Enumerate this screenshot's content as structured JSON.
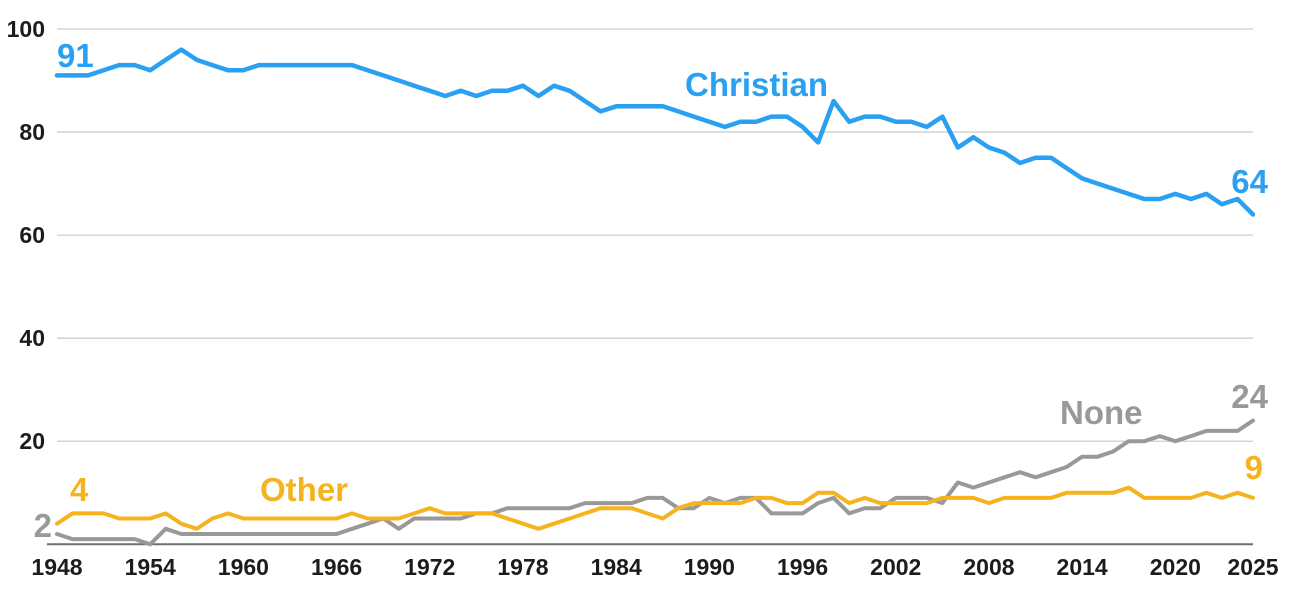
{
  "chart_data": {
    "type": "line",
    "title": "",
    "xlabel": "",
    "ylabel": "",
    "x_range": [
      1948,
      2025
    ],
    "x_step": 1,
    "ylim": [
      0,
      100
    ],
    "grid": true,
    "legend_position": "inline-labels",
    "x_ticks": [
      1948,
      1954,
      1960,
      1966,
      1972,
      1978,
      1984,
      1990,
      1996,
      2002,
      2008,
      2014,
      2020,
      2025
    ],
    "y_ticks": [
      20,
      40,
      60,
      80,
      100
    ],
    "series": [
      {
        "name": "Christian",
        "color": "#2AA0F2",
        "start_value_label": "91",
        "end_value_label": "64",
        "values": [
          91,
          91,
          91,
          92,
          93,
          93,
          92,
          94,
          96,
          94,
          93,
          92,
          92,
          93,
          93,
          93,
          93,
          93,
          93,
          93,
          92,
          91,
          90,
          89,
          88,
          87,
          88,
          87,
          88,
          88,
          89,
          87,
          89,
          88,
          86,
          84,
          85,
          85,
          85,
          85,
          84,
          83,
          82,
          81,
          82,
          82,
          83,
          83,
          81,
          78,
          86,
          82,
          83,
          83,
          82,
          82,
          81,
          83,
          77,
          79,
          77,
          76,
          74,
          75,
          75,
          73,
          71,
          70,
          69,
          68,
          67,
          67,
          68,
          67,
          68,
          66,
          67,
          64
        ]
      },
      {
        "name": "None",
        "color": "#999999",
        "start_value_label": "2",
        "end_value_label": "24",
        "values": [
          2,
          1,
          1,
          1,
          1,
          1,
          0,
          3,
          2,
          2,
          2,
          2,
          2,
          2,
          2,
          2,
          2,
          2,
          2,
          3,
          4,
          5,
          3,
          5,
          5,
          5,
          5,
          6,
          6,
          7,
          7,
          7,
          7,
          7,
          8,
          8,
          8,
          8,
          9,
          9,
          7,
          7,
          9,
          8,
          9,
          9,
          6,
          6,
          6,
          8,
          9,
          6,
          7,
          7,
          9,
          9,
          9,
          8,
          12,
          11,
          12,
          13,
          14,
          13,
          14,
          15,
          17,
          17,
          18,
          20,
          20,
          21,
          20,
          21,
          22,
          22,
          22,
          24
        ]
      },
      {
        "name": "Other",
        "color": "#F5B41F",
        "start_value_label": "4",
        "end_value_label": "9",
        "values": [
          4,
          6,
          6,
          6,
          5,
          5,
          5,
          6,
          4,
          3,
          5,
          6,
          5,
          5,
          5,
          5,
          5,
          5,
          5,
          6,
          5,
          5,
          5,
          6,
          7,
          6,
          6,
          6,
          6,
          5,
          4,
          3,
          4,
          5,
          6,
          7,
          7,
          7,
          6,
          5,
          7,
          8,
          8,
          8,
          8,
          9,
          9,
          8,
          8,
          10,
          10,
          8,
          9,
          8,
          8,
          8,
          8,
          9,
          9,
          9,
          8,
          9,
          9,
          9,
          9,
          10,
          10,
          10,
          10,
          11,
          9,
          9,
          9,
          9,
          10,
          9,
          10,
          9
        ]
      }
    ],
    "annotations": [
      {
        "text": "Christian",
        "color": "#2AA0F2",
        "role": "series-label",
        "series": "Christian"
      },
      {
        "text": "None",
        "color": "#999999",
        "role": "series-label",
        "series": "None"
      },
      {
        "text": "Other",
        "color": "#F5B41F",
        "role": "series-label",
        "series": "Other"
      },
      {
        "text": "91",
        "color": "#2AA0F2",
        "role": "start-value",
        "series": "Christian"
      },
      {
        "text": "64",
        "color": "#2AA0F2",
        "role": "end-value",
        "series": "Christian"
      },
      {
        "text": "2",
        "color": "#999999",
        "role": "start-value",
        "series": "None"
      },
      {
        "text": "24",
        "color": "#999999",
        "role": "end-value",
        "series": "None"
      },
      {
        "text": "4",
        "color": "#F5B41F",
        "role": "start-value",
        "series": "Other"
      },
      {
        "text": "9",
        "color": "#F5B41F",
        "role": "end-value",
        "series": "Other"
      }
    ],
    "colors": {
      "gridline": "#cdcdcd",
      "axis_line": "#6e6e6e",
      "tick_text": "#1c1c1c",
      "background": "#ffffff"
    }
  }
}
